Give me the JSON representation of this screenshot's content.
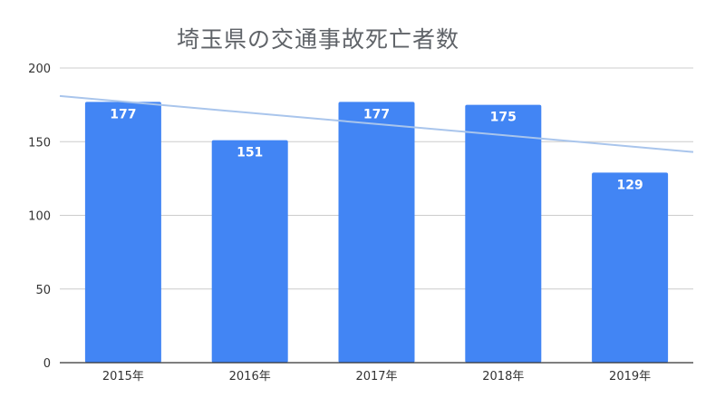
{
  "chart_data": {
    "type": "bar",
    "title": "埼玉県の交通事故死亡者数",
    "categories": [
      "2015年",
      "2016年",
      "2017年",
      "2018年",
      "2019年"
    ],
    "values": [
      177,
      151,
      177,
      175,
      129
    ],
    "data_labels": [
      "177",
      "151",
      "177",
      "175",
      "129"
    ],
    "xlabel": "",
    "ylabel": "",
    "ylim": [
      0,
      200
    ],
    "yticks": [
      0,
      50,
      100,
      150,
      200
    ],
    "ytick_labels": [
      "0",
      "50",
      "100",
      "150",
      "200"
    ],
    "grid": true,
    "legend": "none",
    "trendline": {
      "type": "linear",
      "start_value": 181,
      "end_value": 143
    },
    "colors": {
      "bar": "#4285f4",
      "trendline": "#a9c5ec",
      "grid": "#cccccc",
      "axis": "#333333"
    }
  }
}
